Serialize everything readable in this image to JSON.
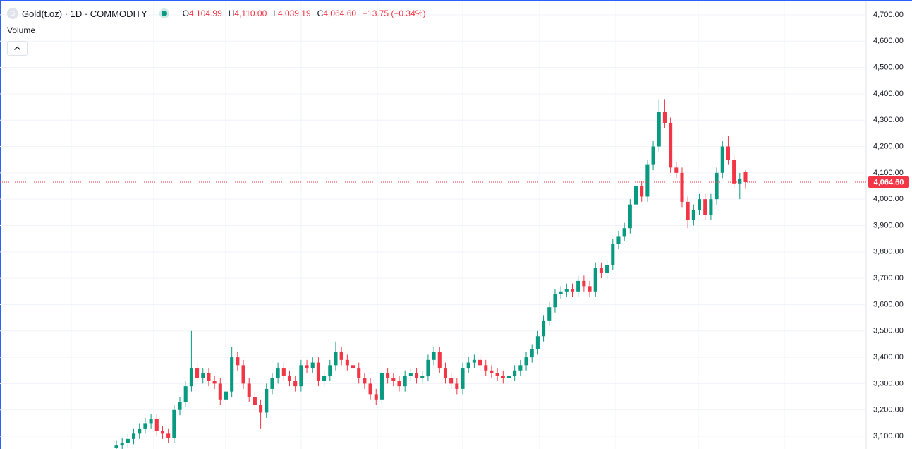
{
  "chart_data": {
    "type": "candlestick",
    "symbol_icon": "G",
    "title": "Gold(t.oz) · 1D · COMMODITY",
    "ohlc_legend": [
      {
        "label": "O",
        "value": "4,104.99"
      },
      {
        "label": "H",
        "value": "4,110.00"
      },
      {
        "label": "L",
        "value": "4,039.19"
      },
      {
        "label": "C",
        "value": "4,064.60"
      }
    ],
    "change": "−13.75 (−0.34%)",
    "indicator": "Volume",
    "up_color": "#089981",
    "down_color": "#f23645",
    "last_price": 4064.6,
    "last_price_label": "4,064.60",
    "grid": true,
    "ylim": [
      3052,
      4756
    ],
    "yticks": [
      {
        "value": 3100,
        "label": "3,100.00"
      },
      {
        "value": 3200,
        "label": "3,200.00"
      },
      {
        "value": 3300,
        "label": "3,300.00"
      },
      {
        "value": 3400,
        "label": "3,400.00"
      },
      {
        "value": 3500,
        "label": "3,500.00"
      },
      {
        "value": 3600,
        "label": "3,600.00"
      },
      {
        "value": 3700,
        "label": "3,700.00"
      },
      {
        "value": 3800,
        "label": "3,800.00"
      },
      {
        "value": 3900,
        "label": "3,900.00"
      },
      {
        "value": 4000,
        "label": "4,000.00"
      },
      {
        "value": 4100,
        "label": "4,100.00"
      },
      {
        "value": 4200,
        "label": "4,200.00"
      },
      {
        "value": 4300,
        "label": "4,300.00"
      },
      {
        "value": 4400,
        "label": "4,400.00"
      },
      {
        "value": 4500,
        "label": "4,500.00"
      },
      {
        "value": 4600,
        "label": "4,600.00"
      },
      {
        "value": 4700,
        "label": "4,700.00"
      }
    ],
    "open": [
      3055,
      3065,
      3075,
      3090,
      3110,
      3130,
      3150,
      3165,
      3120,
      3110,
      3095,
      3200,
      3230,
      3290,
      3360,
      3320,
      3340,
      3310,
      3300,
      3240,
      3270,
      3400,
      3370,
      3300,
      3250,
      3220,
      3190,
      3280,
      3320,
      3360,
      3330,
      3310,
      3290,
      3370,
      3360,
      3380,
      3310,
      3330,
      3370,
      3420,
      3390,
      3370,
      3360,
      3320,
      3300,
      3260,
      3240,
      3340,
      3320,
      3310,
      3290,
      3330,
      3340,
      3320,
      3330,
      3390,
      3420,
      3360,
      3320,
      3300,
      3280,
      3360,
      3380,
      3390,
      3370,
      3350,
      3340,
      3330,
      3320,
      3330,
      3350,
      3370,
      3400,
      3430,
      3480,
      3540,
      3590,
      3640,
      3650,
      3660,
      3650,
      3690,
      3670,
      3650,
      3740,
      3720,
      3750,
      3830,
      3860,
      3890,
      3980,
      4050,
      4010,
      4130,
      4200,
      4330,
      4290,
      4120,
      4100,
      3990,
      3920,
      3960,
      4000,
      3940,
      4000,
      4100,
      4200,
      4150,
      4060,
      4104.99
    ],
    "high": [
      3085,
      3095,
      3110,
      3130,
      3150,
      3170,
      3185,
      3185,
      3140,
      3130,
      3220,
      3250,
      3310,
      3500,
      3380,
      3360,
      3360,
      3330,
      3320,
      3290,
      3440,
      3420,
      3390,
      3320,
      3270,
      3240,
      3300,
      3340,
      3380,
      3380,
      3350,
      3330,
      3390,
      3390,
      3400,
      3400,
      3350,
      3390,
      3460,
      3440,
      3410,
      3390,
      3380,
      3340,
      3320,
      3280,
      3360,
      3360,
      3340,
      3330,
      3350,
      3360,
      3360,
      3350,
      3410,
      3440,
      3440,
      3380,
      3340,
      3320,
      3380,
      3400,
      3410,
      3410,
      3390,
      3370,
      3360,
      3350,
      3350,
      3370,
      3390,
      3420,
      3450,
      3500,
      3560,
      3610,
      3660,
      3670,
      3680,
      3680,
      3710,
      3710,
      3690,
      3760,
      3760,
      3770,
      3850,
      3880,
      3910,
      4000,
      4070,
      4070,
      4150,
      4220,
      4380,
      4380,
      4310,
      4140,
      4120,
      4010,
      3980,
      4020,
      4020,
      4020,
      4120,
      4220,
      4240,
      4170,
      4100,
      4110
    ],
    "low": [
      3035,
      3045,
      3055,
      3070,
      3090,
      3110,
      3130,
      3100,
      3090,
      3075,
      3075,
      3180,
      3210,
      3270,
      3300,
      3300,
      3290,
      3280,
      3220,
      3210,
      3250,
      3350,
      3280,
      3230,
      3200,
      3130,
      3170,
      3260,
      3300,
      3310,
      3290,
      3270,
      3270,
      3340,
      3340,
      3290,
      3290,
      3310,
      3350,
      3370,
      3350,
      3340,
      3300,
      3280,
      3240,
      3220,
      3220,
      3300,
      3290,
      3270,
      3270,
      3310,
      3300,
      3300,
      3310,
      3370,
      3340,
      3300,
      3280,
      3260,
      3260,
      3340,
      3360,
      3350,
      3330,
      3320,
      3310,
      3300,
      3300,
      3310,
      3330,
      3350,
      3380,
      3410,
      3460,
      3520,
      3570,
      3620,
      3630,
      3630,
      3630,
      3650,
      3630,
      3630,
      3700,
      3700,
      3730,
      3810,
      3840,
      3870,
      3960,
      3990,
      3990,
      4110,
      4180,
      4270,
      4100,
      4080,
      3970,
      3890,
      3900,
      3940,
      3920,
      3920,
      3980,
      4080,
      4130,
      4040,
      4000,
      4039.19
    ],
    "close": [
      3065,
      3075,
      3090,
      3110,
      3130,
      3150,
      3165,
      3120,
      3110,
      3095,
      3200,
      3230,
      3290,
      3360,
      3320,
      3340,
      3310,
      3300,
      3240,
      3270,
      3400,
      3370,
      3300,
      3250,
      3220,
      3190,
      3280,
      3320,
      3360,
      3330,
      3310,
      3290,
      3370,
      3360,
      3380,
      3310,
      3330,
      3370,
      3420,
      3390,
      3370,
      3360,
      3320,
      3300,
      3260,
      3240,
      3340,
      3320,
      3310,
      3290,
      3330,
      3340,
      3320,
      3330,
      3390,
      3420,
      3360,
      3320,
      3300,
      3280,
      3360,
      3380,
      3390,
      3370,
      3350,
      3340,
      3330,
      3320,
      3330,
      3350,
      3370,
      3400,
      3430,
      3480,
      3540,
      3590,
      3640,
      3650,
      3660,
      3650,
      3690,
      3670,
      3650,
      3740,
      3720,
      3750,
      3830,
      3860,
      3890,
      3980,
      4050,
      4010,
      4130,
      4200,
      4330,
      4290,
      4120,
      4100,
      3990,
      3920,
      3960,
      4000,
      3940,
      4000,
      4100,
      4200,
      4150,
      4060,
      4078.35,
      4064.6
    ]
  }
}
